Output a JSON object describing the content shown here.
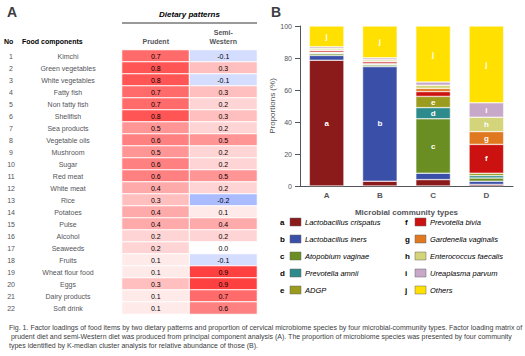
{
  "chart_data": [
    {
      "type": "heatmap",
      "title": "A",
      "subtitle": "Dietary patterns",
      "row_header": [
        "No",
        "Food components"
      ],
      "row_numbers": [
        1,
        2,
        3,
        4,
        5,
        6,
        7,
        8,
        9,
        10,
        11,
        12,
        13,
        14,
        15,
        16,
        17,
        18,
        19,
        20,
        21,
        22
      ],
      "categories": [
        "Kimchi",
        "Green vegetables",
        "White vegetables",
        "Fatty fish",
        "Non fatty fish",
        "Shellfish",
        "Sea products",
        "Vegetable oils",
        "Mushroom",
        "Sugar",
        "Red meat",
        "White meat",
        "Rice",
        "Potatoes",
        "Pulse",
        "Alcohol",
        "Seaweeds",
        "Fruits",
        "Wheat flour food",
        "Eggs",
        "Dairy products",
        "Soft drink"
      ],
      "series": [
        {
          "name": "Prudent",
          "values": [
            0.7,
            0.8,
            0.8,
            0.7,
            0.7,
            0.8,
            0.5,
            0.6,
            0.5,
            0.6,
            0.6,
            0.4,
            0.3,
            0.4,
            0.4,
            0.2,
            0.2,
            0.1,
            0.1,
            0.3,
            0.1,
            0.1
          ],
          "value_labels": [
            "0.7",
            "0.8",
            "0.8",
            "0.7",
            "0.7",
            "0.8",
            "0.5",
            "0.6",
            "0.5",
            "0.6",
            "0.6",
            "0.4",
            "0.3",
            "0.4",
            "0.4",
            "0.2",
            "0.2",
            "0.1",
            "0.1",
            "0.3",
            "0.1",
            "0.1"
          ]
        },
        {
          "name": "Semi-\nWestern",
          "values": [
            -0.1,
            0.3,
            -0.1,
            0.3,
            0.2,
            0.3,
            0.2,
            0.5,
            0.2,
            0.2,
            0.5,
            0.2,
            -0.2,
            0.1,
            0.4,
            0.2,
            0.0,
            -0.1,
            0.9,
            0.9,
            0.7,
            0.6
          ],
          "value_labels": [
            "-0.1",
            "0.3",
            "-0.1",
            "0.3",
            "0.2",
            "0.3",
            "0.2",
            "0.5",
            "0.2",
            "0.2",
            "0.5",
            "0.2",
            "-0.2",
            "0.1",
            "0.4",
            "0.2",
            "0.0",
            "-0.1",
            "0.9",
            "0.9",
            "0.7",
            "0.6"
          ]
        }
      ],
      "color_range": [
        -0.3,
        0.9
      ],
      "color_stops": [
        "#8099ff",
        "#ffffff",
        "#ffbfbf",
        "#ff8080",
        "#ff4040"
      ],
      "data_labels": true,
      "grid": false
    },
    {
      "type": "bar",
      "title": "B",
      "stacked": true,
      "grid": false,
      "legend": "bottom",
      "categories": [
        "A",
        "B",
        "C",
        "D"
      ],
      "x_label": "Microbial community types",
      "y_label": "Proportions (%)",
      "ylim": [
        0,
        100
      ],
      "yticks": [
        0,
        20,
        40,
        60,
        80,
        100
      ],
      "series": [
        {
          "name": "Lactobacillus crispatus",
          "label": "a",
          "color": "#8B1A1A",
          "values": [
            78.607,
            2.9851,
            4,
            1
          ],
          "segment_labels": [
            "a",
            null,
            null,
            null
          ]
        },
        {
          "name": "Lactobacillus iners",
          "label": "b",
          "color": "#3A4FA8",
          "values": [
            2.9851,
            71.6418,
            4,
            2
          ],
          "segment_labels": [
            null,
            "b",
            null,
            null
          ]
        },
        {
          "name": "Atopobium vaginae",
          "label": "c",
          "color": "#6B8E23",
          "values": [
            0.995,
            0.995,
            34,
            2
          ],
          "segment_labels": [
            null,
            null,
            "c",
            null
          ]
        },
        {
          "name": "Prevotella amnii",
          "label": "d",
          "color": "#2E8B8B",
          "values": [
            0.4975,
            0.4975,
            7,
            1.5
          ],
          "segment_labels": [
            null,
            null,
            "d",
            null
          ]
        },
        {
          "name": "ADGP",
          "label": "e",
          "color": "#9B9B1E",
          "values": [
            0.4975,
            0.4975,
            7,
            1.5
          ],
          "segment_labels": [
            null,
            null,
            "e",
            null
          ]
        },
        {
          "name": "Prevotella bivia",
          "label": "f",
          "color": "#CC1111",
          "values": [
            0.995,
            0.995,
            3,
            18
          ],
          "segment_labels": [
            null,
            null,
            null,
            "f"
          ]
        },
        {
          "name": "Gardenella vaginalis",
          "label": "g",
          "color": "#E07820",
          "values": [
            0.4975,
            0.4975,
            2,
            8
          ],
          "segment_labels": [
            null,
            null,
            null,
            "g"
          ]
        },
        {
          "name": "Enterococcus faecalis",
          "label": "h",
          "color": "#D4D47A",
          "values": [
            0.995,
            0.995,
            2,
            9
          ],
          "segment_labels": [
            null,
            null,
            null,
            "h"
          ]
        },
        {
          "name": "Ureaplasma parvum",
          "label": "i",
          "color": "#C8A8C8",
          "values": [
            0.995,
            0.995,
            2,
            9
          ],
          "segment_labels": [
            null,
            null,
            null,
            "i"
          ]
        },
        {
          "name": "Others",
          "label": "j",
          "color": "#FFE000",
          "values": [
            12.9353,
            19.9005,
            35,
            48
          ],
          "segment_labels": [
            "j",
            "j",
            "j",
            "j"
          ]
        }
      ],
      "caption": "Fig. 1. Factor loadings of food items by two dietary patterns and proportion of cervical microbiome species by four microbial-community types. Factor loading matrix of prudent diet and semi-Western diet was produced from principal component analysis (A). The proportion of microbiome species was presented by four community types identified by K-median cluster analysis for relative abundance of those (B)."
    }
  ]
}
